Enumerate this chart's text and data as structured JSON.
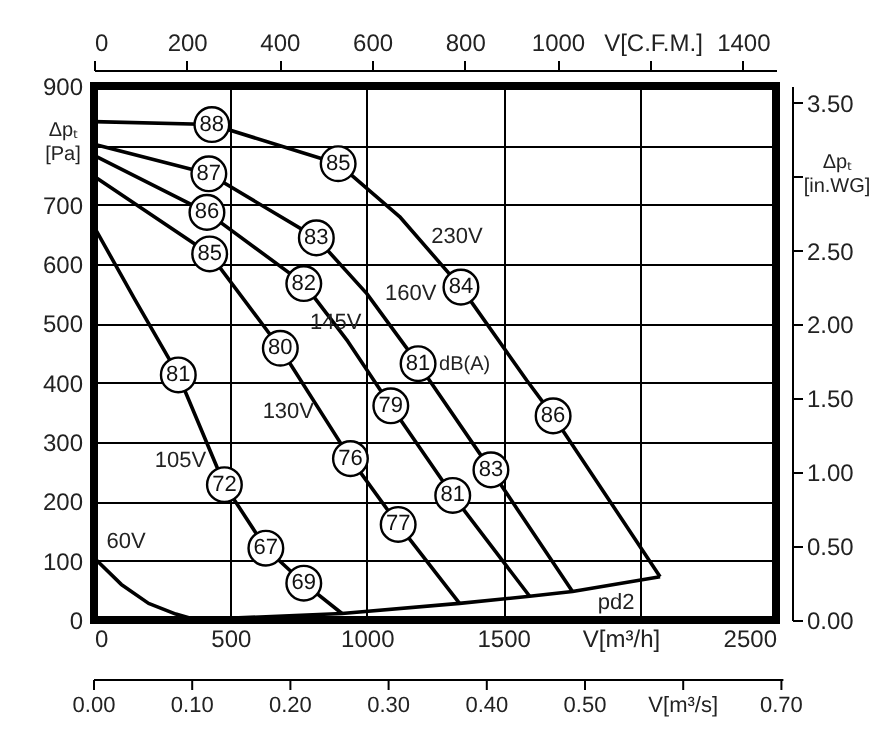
{
  "chart_data": {
    "type": "line",
    "xlabel": "V[m³/h]",
    "ylabel": "Δpₜ [Pa]",
    "y2label": "Δpₜ [in.WG]",
    "x2label": "V[C.F.M.]",
    "xlim": [
      0,
      2500
    ],
    "xticks": [
      0,
      500,
      1000,
      1500,
      {
        "value": 2000,
        "label": null
      },
      2500
    ],
    "ylim": [
      0,
      900
    ],
    "yticks": [
      0,
      100,
      200,
      300,
      400,
      500,
      600,
      700,
      {
        "value": 800,
        "label": null
      },
      900
    ],
    "x2lim": [
      0,
      1471.5
    ],
    "x2ticks": [
      0,
      200,
      400,
      600,
      800,
      1000,
      {
        "value": 1200,
        "label": null
      },
      1400
    ],
    "y2lim": [
      0,
      3.613
    ],
    "y2ticks": [
      {
        "value": 0,
        "label": "0.00"
      },
      {
        "value": 0.5,
        "label": "0.50"
      },
      {
        "value": 1,
        "label": "1.00"
      },
      {
        "value": 1.5,
        "label": "1.50"
      },
      {
        "value": 2,
        "label": "2.00"
      },
      {
        "value": 2.5,
        "label": "2.50"
      },
      {
        "value": 3,
        "label": null
      },
      {
        "value": 3.5,
        "label": "3.50"
      }
    ],
    "grid": true,
    "line_style": "solid",
    "series": [
      {
        "name": "230V",
        "color": "#000000",
        "x": [
          0,
          432,
          895,
          1120,
          1345,
          1586,
          1683,
          2075
        ],
        "values": [
          840,
          835,
          769,
          680,
          561,
          404,
          344,
          73
        ]
      },
      {
        "name": "160V",
        "color": "#000000",
        "x": [
          0,
          421,
          815,
          1000,
          1188,
          1455,
          1754
        ],
        "values": [
          802,
          752,
          644,
          550,
          432,
          253,
          48
        ]
      },
      {
        "name": "145V",
        "color": "#000000",
        "x": [
          0,
          414,
          769,
          930,
          1088,
          1315,
          1597
        ],
        "values": [
          783,
          687,
          567,
          470,
          361,
          210,
          40
        ]
      },
      {
        "name": "130V",
        "color": "#000000",
        "x": [
          0,
          424,
          683,
          940,
          1115,
          1340
        ],
        "values": [
          748,
          617,
          458,
          272,
          161,
          28
        ]
      },
      {
        "name": "105V",
        "color": "#000000",
        "x": [
          0,
          150,
          309,
          478,
          630,
          769,
          909
        ],
        "values": [
          663,
          540,
          413,
          228,
          121,
          62,
          11
        ]
      },
      {
        "name": "60V",
        "color": "#000000",
        "x": [
          0,
          100,
          200,
          300,
          360
        ],
        "values": [
          105,
          60,
          28,
          10,
          2
        ]
      },
      {
        "name": "pd2",
        "color": "#000000",
        "x": [
          400,
          909,
          1340,
          1597,
          1754,
          2075
        ],
        "values": [
          1,
          11,
          28,
          40,
          48,
          73
        ]
      }
    ],
    "annotations": [
      {
        "text": "88",
        "x": 432,
        "y": 835
      },
      {
        "text": "85",
        "x": 895,
        "y": 769
      },
      {
        "text": "84",
        "x": 1345,
        "y": 561
      },
      {
        "text": "86",
        "x": 1683,
        "y": 344
      },
      {
        "text": "87",
        "x": 421,
        "y": 752
      },
      {
        "text": "83",
        "x": 815,
        "y": 644
      },
      {
        "text": "81",
        "x": 1188,
        "y": 432
      },
      {
        "text": "83",
        "x": 1455,
        "y": 253
      },
      {
        "text": "86",
        "x": 414,
        "y": 687
      },
      {
        "text": "82",
        "x": 769,
        "y": 567
      },
      {
        "text": "79",
        "x": 1088,
        "y": 361
      },
      {
        "text": "81",
        "x": 1315,
        "y": 210
      },
      {
        "text": "85",
        "x": 424,
        "y": 617
      },
      {
        "text": "80",
        "x": 683,
        "y": 458
      },
      {
        "text": "76",
        "x": 940,
        "y": 272
      },
      {
        "text": "77",
        "x": 1115,
        "y": 161
      },
      {
        "text": "81",
        "x": 309,
        "y": 413
      },
      {
        "text": "72",
        "x": 478,
        "y": 228
      },
      {
        "text": "67",
        "x": 630,
        "y": 121
      },
      {
        "text": "69",
        "x": 769,
        "y": 62
      },
      "dB(A)",
      "0.00",
      "0.10",
      "0.20",
      "0.30",
      "0.40",
      "0.50",
      "V[m³/s]",
      "0.70"
    ]
  }
}
